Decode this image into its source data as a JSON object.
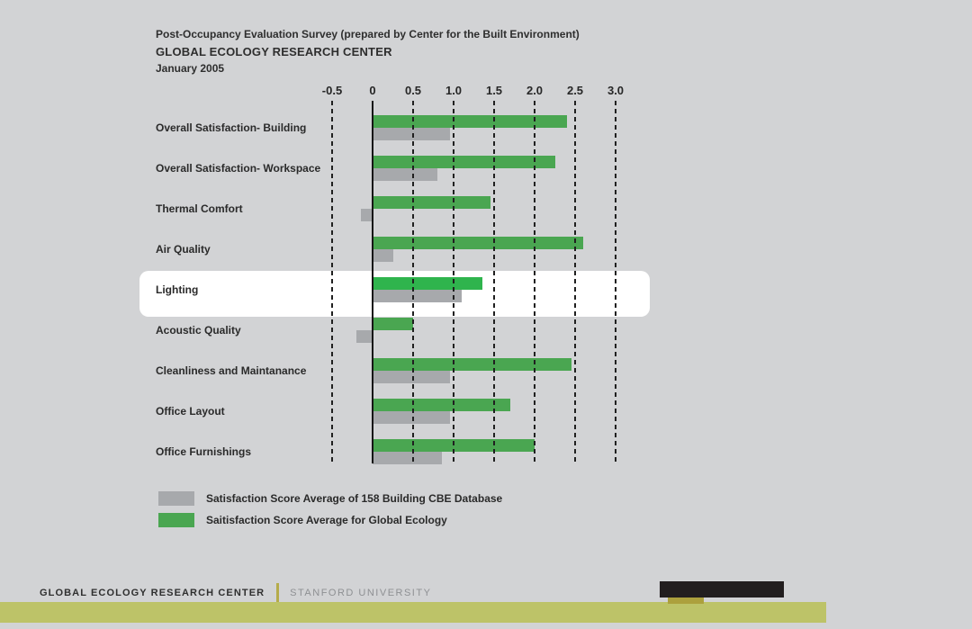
{
  "header": {
    "title": "Post-Occupancy Evaluation Survey (prepared by Center for the Built Environment)",
    "organization": "GLOBAL ECOLOGY RESEARCH CENTER",
    "date": "January 2005"
  },
  "chart_data": {
    "type": "bar",
    "orientation": "horizontal",
    "title": "Post-Occupancy Evaluation Survey (prepared by Center for the Built Environment)",
    "subtitle": "GLOBAL ECOLOGY RESEARCH CENTER, January 2005",
    "categories": [
      "Overall Satisfaction- Building",
      "Overall Satisfaction- Workspace",
      "Thermal Comfort",
      "Air Quality",
      "Lighting",
      "Acoustic Quality",
      "Cleanliness and Maintanance",
      "Office Layout",
      "Office Furnishings"
    ],
    "series": [
      {
        "name": "Saitisfaction Score Average for Global Ecology",
        "color": "#4aa651",
        "values": [
          2.4,
          2.25,
          1.45,
          2.6,
          1.35,
          0.5,
          2.45,
          1.7,
          2.0
        ]
      },
      {
        "name": "Satisfaction Score Average of 158 Building CBE Database",
        "color": "#a7a9ac",
        "values": [
          0.95,
          0.8,
          -0.15,
          0.25,
          1.1,
          -0.2,
          0.95,
          0.95,
          0.85
        ]
      }
    ],
    "xlim": [
      -0.5,
      3.0
    ],
    "x_ticks": [
      "-0.5",
      "0",
      "0.5",
      "1.0",
      "1.5",
      "2.0",
      "2.5",
      "3.0"
    ],
    "x_tick_values": [
      -0.5,
      0,
      0.5,
      1.0,
      1.5,
      2.0,
      2.5,
      3.0
    ],
    "grid": "vertical-dashed-black-solid-zero-axis",
    "highlighted_category": "Lighting",
    "highlight_band_color": "#ffffff",
    "highlight_bar_color": "#2fb44d",
    "legend_position": "bottom-left"
  },
  "legend": {
    "items": [
      {
        "label": "Satisfaction Score Average of 158 Building CBE Database",
        "color": "#a7a9ac"
      },
      {
        "label": "Saitisfaction Score Average for Global Ecology",
        "color": "#4aa651"
      }
    ]
  },
  "footer": {
    "left": "GLOBAL ECOLOGY RESEARCH CENTER",
    "right": "STANFORD UNIVERSITY"
  },
  "colors": {
    "background": "#d2d3d5",
    "bar_green": "#4aa651",
    "bar_green_highlight": "#2fb44d",
    "bar_gray": "#a7a9ac",
    "highlight_band": "#ffffff",
    "olive_band": "#bdc368",
    "olive_tab": "#aca03d",
    "footer_divider": "#b5ab4a",
    "black_bar": "#221e1f"
  }
}
